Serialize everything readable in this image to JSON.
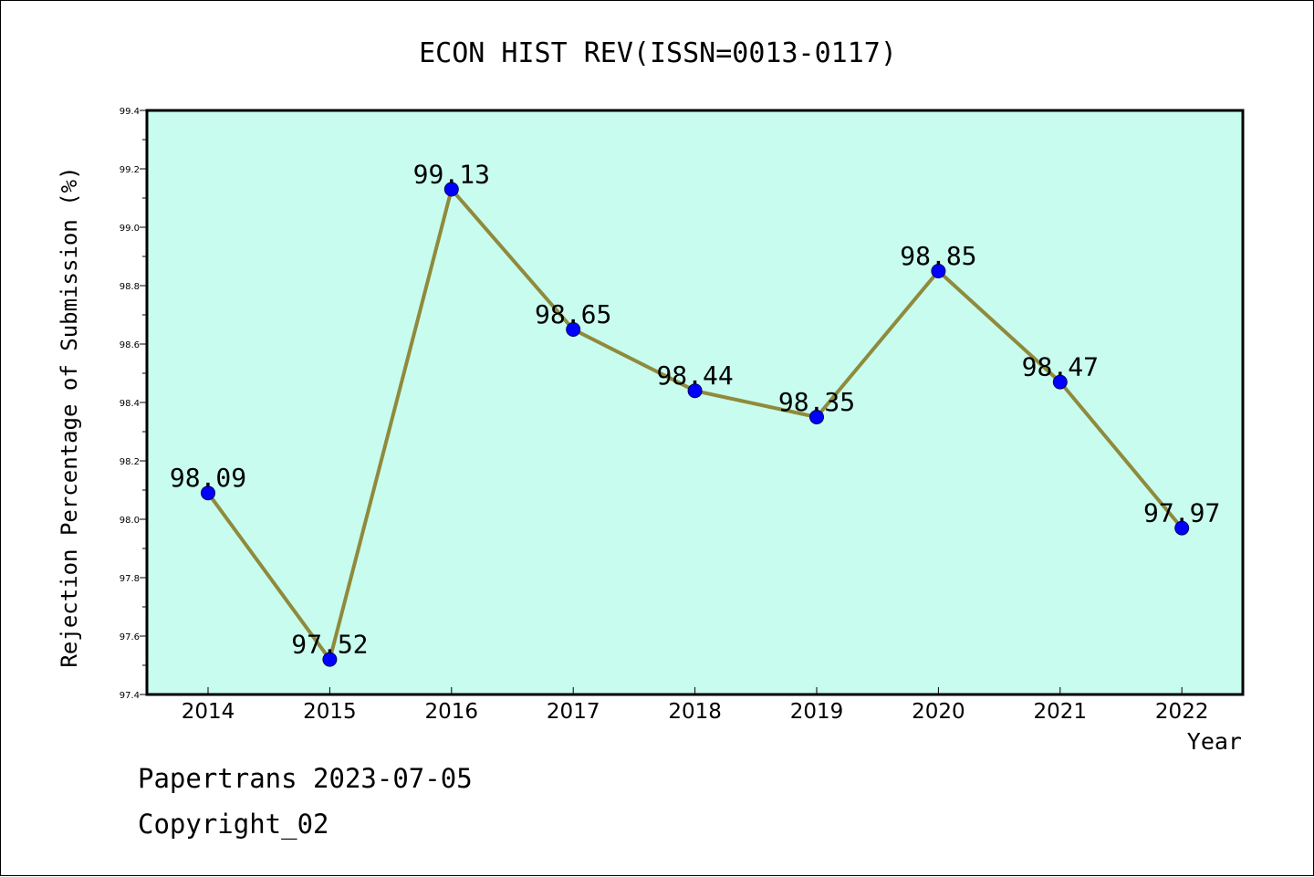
{
  "chart_data": {
    "type": "line",
    "title": "ECON HIST REV(ISSN=0013-0117)",
    "xlabel": "Year",
    "ylabel": "Rejection Percentage of Submission (%)",
    "categories": [
      "2014",
      "2015",
      "2016",
      "2017",
      "2018",
      "2019",
      "2020",
      "2021",
      "2022"
    ],
    "series": [
      {
        "values": [
          98.09,
          97.52,
          99.13,
          98.65,
          98.44,
          98.35,
          98.85,
          98.47,
          97.97
        ],
        "data_labels": [
          "98.09",
          "97.52",
          "99.13",
          "98.65",
          "98.44",
          "98.35",
          "98.85",
          "98.47",
          "97.97"
        ]
      }
    ],
    "ylim": [
      97.4,
      99.4
    ],
    "yticks": [
      "97.4",
      "97.6",
      "97.8",
      "98.0",
      "98.2",
      "98.4",
      "98.6",
      "98.8",
      "99.0",
      "99.2",
      "99.4"
    ],
    "grid": false,
    "colors": {
      "plot_background": "#c8fcee",
      "line": "#8f8a3c",
      "marker": "#0000ff"
    }
  },
  "footer": {
    "source": "Papertrans 2023-07-05",
    "copyright": "Copyright_02"
  }
}
